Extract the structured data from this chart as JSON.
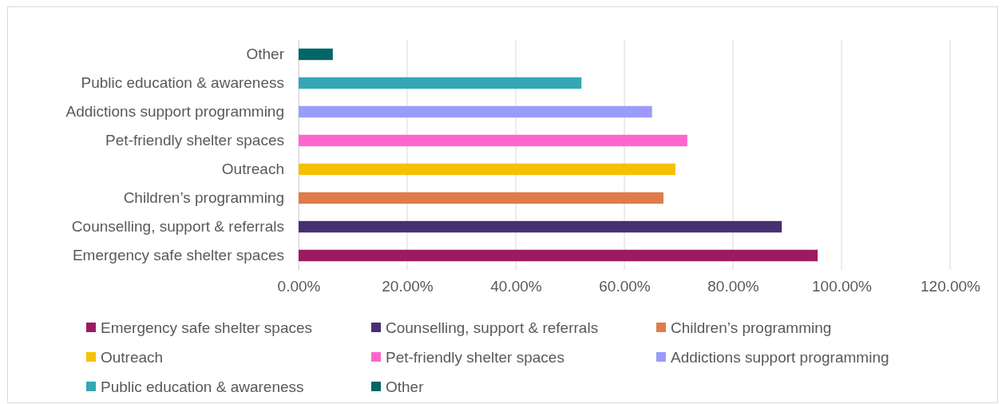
{
  "chart_data": {
    "type": "bar",
    "orientation": "horizontal",
    "categories": [
      "Other",
      "Public education & awareness",
      "Addictions support programming",
      "Pet-friendly shelter spaces",
      "Outreach",
      "Children’s programming",
      "Counselling, support & referrals",
      "Emergency safe shelter spaces"
    ],
    "series": [
      {
        "name": "Emergency safe shelter spaces",
        "color": "#9b1b63",
        "values": [
          null,
          null,
          null,
          null,
          null,
          null,
          null,
          95.6
        ]
      },
      {
        "name": "Counselling, support & referrals",
        "color": "#46306f",
        "values": [
          null,
          null,
          null,
          null,
          null,
          null,
          89.0,
          null
        ]
      },
      {
        "name": "Children’s programming",
        "color": "#e07b4a",
        "values": [
          null,
          null,
          null,
          null,
          null,
          67.2,
          null,
          null
        ]
      },
      {
        "name": "Outreach",
        "color": "#f6c100",
        "values": [
          null,
          null,
          null,
          null,
          69.4,
          null,
          null,
          null
        ]
      },
      {
        "name": "Pet-friendly shelter spaces",
        "color": "#ff66cc",
        "values": [
          null,
          null,
          null,
          71.6,
          null,
          null,
          null,
          null
        ]
      },
      {
        "name": "Addictions support programming",
        "color": "#9b9bfb",
        "values": [
          null,
          null,
          65.1,
          null,
          null,
          null,
          null,
          null
        ]
      },
      {
        "name": "Public education & awareness",
        "color": "#35a7b3",
        "values": [
          null,
          52.1,
          null,
          null,
          null,
          null,
          null,
          null
        ]
      },
      {
        "name": "Other",
        "color": "#006666",
        "values": [
          6.3,
          null,
          null,
          null,
          null,
          null,
          null,
          null
        ]
      }
    ],
    "stacked": true,
    "xlim": [
      0,
      120
    ],
    "xticks": [
      {
        "value": 0,
        "label": "0.00%"
      },
      {
        "value": 20,
        "label": "20.00%"
      },
      {
        "value": 40,
        "label": "40.00%"
      },
      {
        "value": 60,
        "label": "60.00%"
      },
      {
        "value": 80,
        "label": "80.00%"
      },
      {
        "value": 100,
        "label": "100.00%"
      },
      {
        "value": 120,
        "label": "120.00%"
      }
    ],
    "grid": "x",
    "legend": "bottom"
  }
}
